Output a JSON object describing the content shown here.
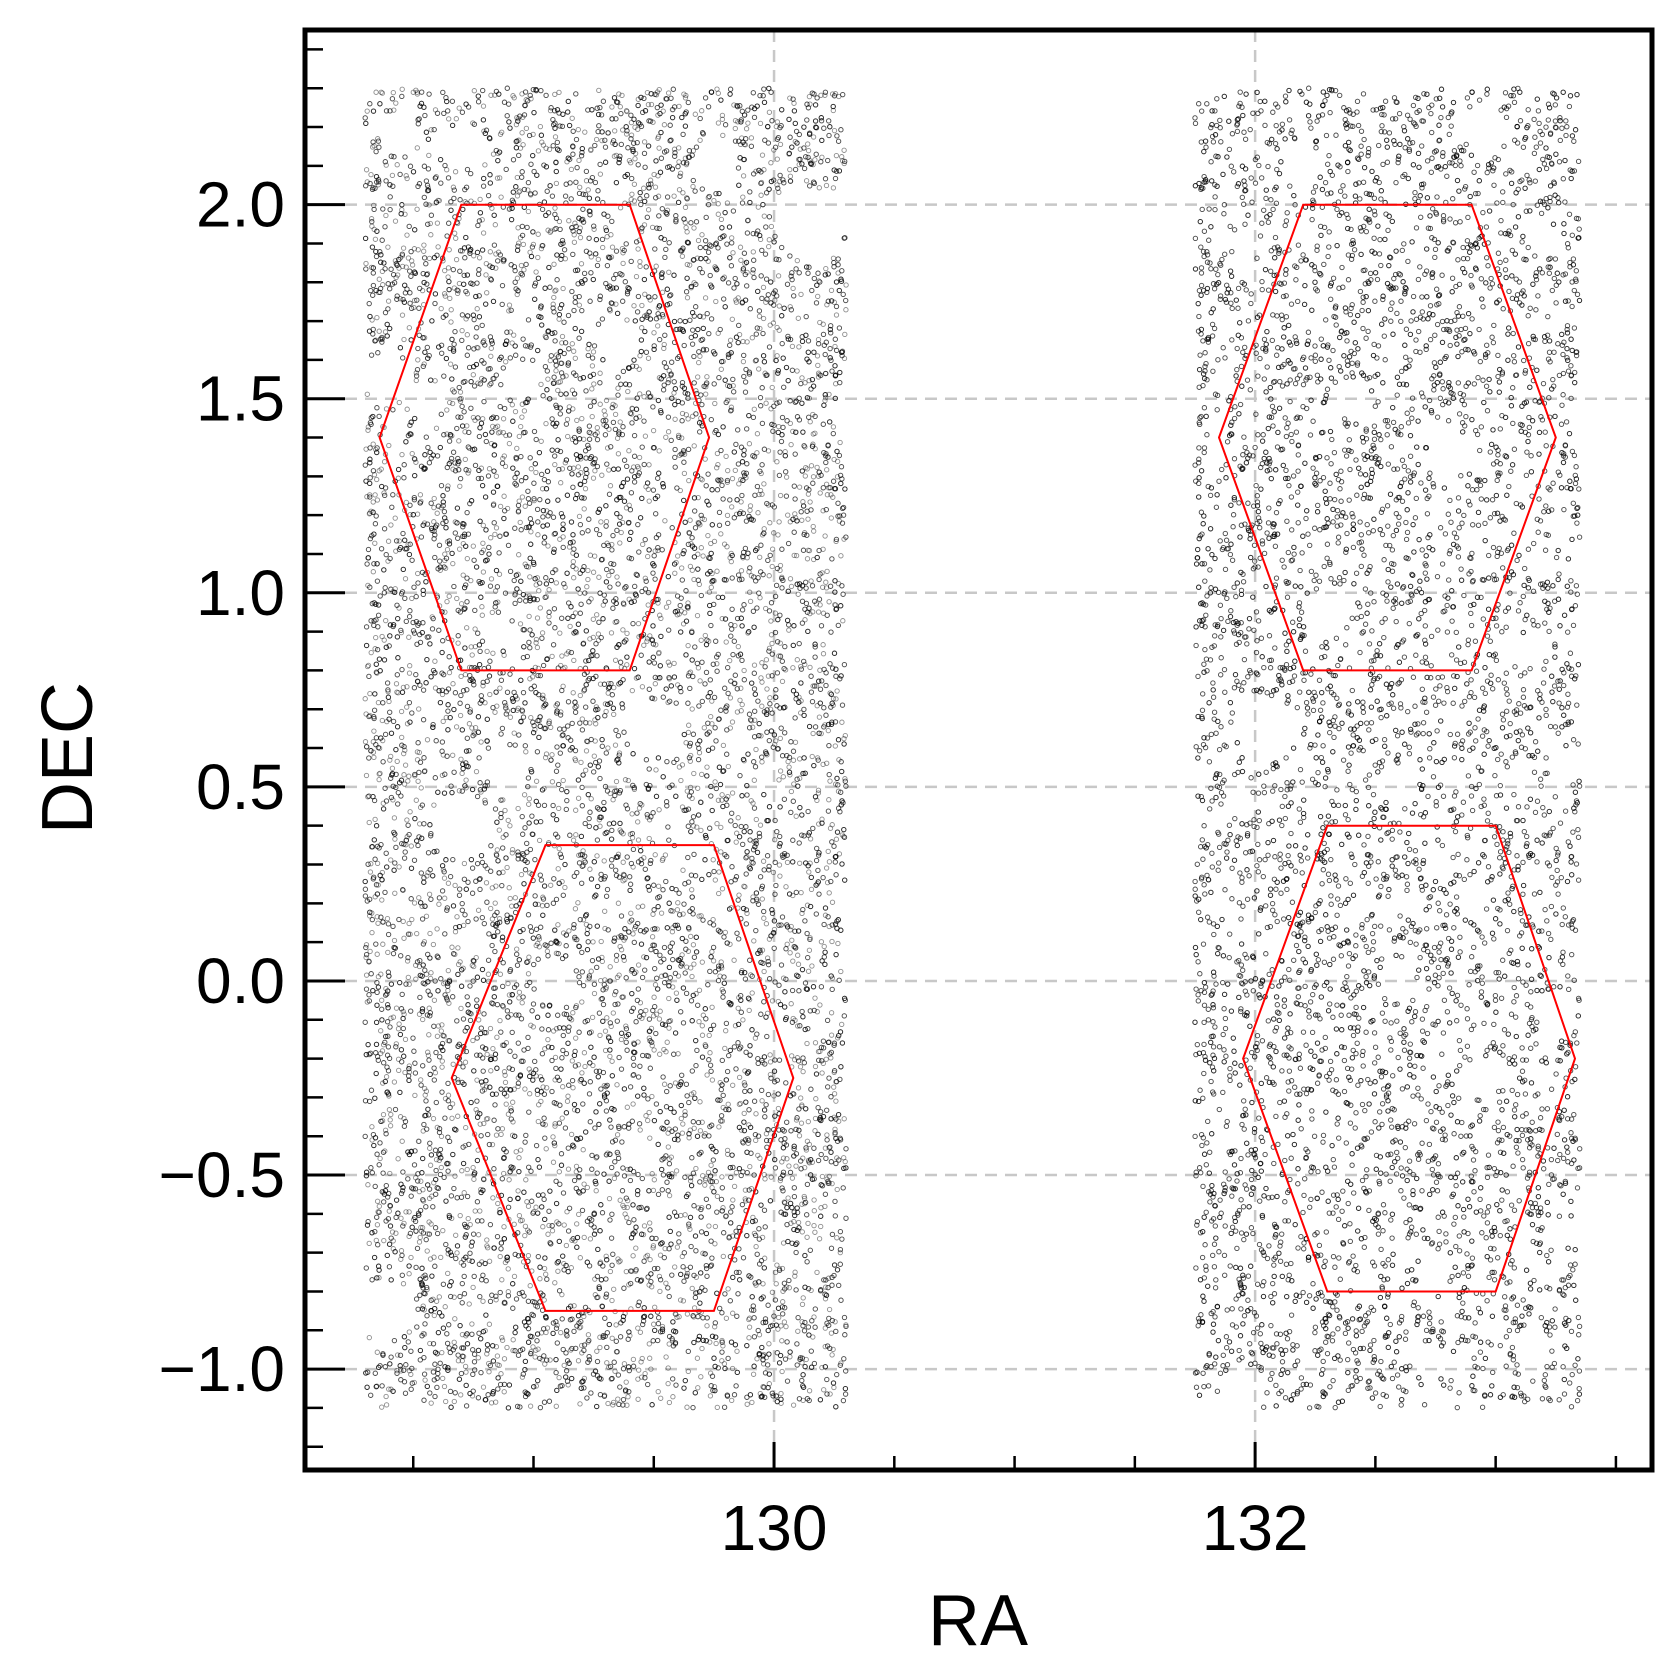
{
  "chart_data": {
    "type": "scatter",
    "title": "",
    "xlabel": "RA",
    "ylabel": "DEC",
    "xlim": [
      128.05,
      133.65
    ],
    "ylim": [
      -1.26,
      2.45
    ],
    "x_ticks": [
      130,
      132
    ],
    "x_tick_labels": [
      "130",
      "132"
    ],
    "y_ticks": [
      -1.0,
      -0.5,
      0.0,
      0.5,
      1.0,
      1.5,
      2.0
    ],
    "y_tick_labels": [
      "−1.0",
      "−0.5",
      "0.0",
      "0.5",
      "1.0",
      "1.5",
      "2.0"
    ],
    "grid": true,
    "legend": "none",
    "colors": {
      "points": "#000000",
      "hexagon": "#ff0000",
      "grid": "#c8c8c8",
      "axes": "#000000"
    },
    "point_regions": [
      {
        "ra": [
          128.3,
          130.3
        ],
        "dec": [
          -1.1,
          2.3
        ]
      },
      {
        "ra": [
          131.75,
          133.35
        ],
        "dec": [
          -1.1,
          2.3
        ]
      }
    ],
    "masked_holes": [
      {
        "ra": 128.45,
        "dec": 2.18,
        "r": 0.08
      },
      {
        "ra": 128.7,
        "dec": 2.15,
        "r": 0.09
      },
      {
        "ra": 129.75,
        "dec": 2.1,
        "r": 0.1
      },
      {
        "ra": 130.15,
        "dec": 1.95,
        "r": 0.15
      },
      {
        "ra": 129.35,
        "dec": 1.65,
        "r": 0.09
      },
      {
        "ra": 128.95,
        "dec": 1.55,
        "r": 0.08
      },
      {
        "ra": 128.4,
        "dec": 1.55,
        "r": 0.1
      },
      {
        "ra": 128.55,
        "dec": 1.5,
        "r": 0.08
      },
      {
        "ra": 129.85,
        "dec": 1.15,
        "r": 0.06
      },
      {
        "ra": 128.85,
        "dec": 0.9,
        "r": 0.07
      },
      {
        "ra": 129.5,
        "dec": 0.65,
        "r": 0.12
      },
      {
        "ra": 129.85,
        "dec": 0.62,
        "r": 0.06
      },
      {
        "ra": 128.9,
        "dec": 0.55,
        "r": 0.09
      },
      {
        "ra": 128.7,
        "dec": 0.4,
        "r": 0.13
      },
      {
        "ra": 128.75,
        "dec": 0.1,
        "r": 0.06
      },
      {
        "ra": 129.1,
        "dec": 0.0,
        "r": 0.08
      },
      {
        "ra": 129.45,
        "dec": -0.45,
        "r": 0.07
      },
      {
        "ra": 130.05,
        "dec": -0.15,
        "r": 0.07
      },
      {
        "ra": 128.4,
        "dec": -0.85,
        "r": 0.12
      },
      {
        "ra": 132.2,
        "dec": 2.1,
        "r": 0.08
      },
      {
        "ra": 132.95,
        "dec": 2.2,
        "r": 0.1
      },
      {
        "ra": 131.95,
        "dec": 1.85,
        "r": 0.06
      },
      {
        "ra": 132.4,
        "dec": 1.5,
        "r": 0.08
      },
      {
        "ra": 132.8,
        "dec": 1.35,
        "r": 0.09
      },
      {
        "ra": 133.2,
        "dec": 1.9,
        "r": 0.06
      },
      {
        "ra": 132.3,
        "dec": 0.95,
        "r": 0.1
      },
      {
        "ra": 132.05,
        "dec": 0.65,
        "r": 0.12
      },
      {
        "ra": 133.15,
        "dec": 0.85,
        "r": 0.07
      },
      {
        "ra": 132.6,
        "dec": 0.5,
        "r": 0.08
      },
      {
        "ra": 133.3,
        "dec": 0.55,
        "r": 0.06
      },
      {
        "ra": 132.6,
        "dec": 0.0,
        "r": 0.07
      },
      {
        "ra": 132.95,
        "dec": -0.25,
        "r": 0.08
      },
      {
        "ra": 132.75,
        "dec": -0.75,
        "r": 0.07
      },
      {
        "ra": 133.25,
        "dec": -0.1,
        "r": 0.06
      },
      {
        "ra": 133.35,
        "dec": -0.65,
        "r": 0.07
      },
      {
        "ra": 131.95,
        "dec": -1.05,
        "r": 0.1
      },
      {
        "ra": 133.15,
        "dec": -0.95,
        "r": 0.08
      }
    ],
    "hexagons": [
      {
        "name": "",
        "vertices": [
          [
            128.7,
            2.0
          ],
          [
            129.4,
            2.0
          ],
          [
            129.73,
            1.4
          ],
          [
            129.4,
            0.8
          ],
          [
            128.7,
            0.8
          ],
          [
            128.36,
            1.4
          ]
        ]
      },
      {
        "name": "",
        "vertices": [
          [
            129.05,
            0.35
          ],
          [
            129.75,
            0.35
          ],
          [
            130.08,
            -0.25
          ],
          [
            129.75,
            -0.85
          ],
          [
            129.05,
            -0.85
          ],
          [
            128.66,
            -0.25
          ]
        ]
      },
      {
        "name": "",
        "vertices": [
          [
            132.2,
            2.0
          ],
          [
            132.9,
            2.0
          ],
          [
            133.25,
            1.4
          ],
          [
            132.9,
            0.8
          ],
          [
            132.2,
            0.8
          ],
          [
            131.85,
            1.4
          ]
        ]
      },
      {
        "name": "",
        "vertices": [
          [
            132.3,
            0.4
          ],
          [
            133.0,
            0.4
          ],
          [
            133.33,
            -0.2
          ],
          [
            133.0,
            -0.8
          ],
          [
            132.3,
            -0.8
          ],
          [
            131.95,
            -0.2
          ]
        ]
      }
    ]
  }
}
